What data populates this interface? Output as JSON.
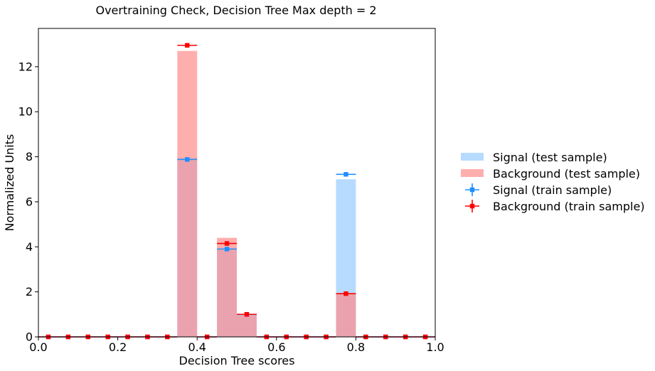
{
  "chart_data": {
    "type": "bar",
    "title": "Overtraining Check, Decision Tree Max depth = 2",
    "xlabel": "Decision Tree scores",
    "ylabel": "Normalized Units",
    "xlim": [
      0.0,
      1.0
    ],
    "ylim": [
      0,
      13.7
    ],
    "xticks": [
      "0.0",
      "0.2",
      "0.4",
      "0.6",
      "0.8",
      "1.0"
    ],
    "yticks": [
      "0",
      "2",
      "4",
      "6",
      "8",
      "10",
      "12"
    ],
    "grid": false,
    "legend_position": "outside-right",
    "bin_edges": [
      0.0,
      0.05,
      0.1,
      0.15,
      0.2,
      0.25,
      0.3,
      0.35,
      0.4,
      0.45,
      0.5,
      0.55,
      0.6,
      0.65,
      0.7,
      0.75,
      0.8,
      0.85,
      0.9,
      0.95,
      1.0
    ],
    "series": [
      {
        "name": "Signal (test sample)",
        "kind": "filled-histogram",
        "color": "#99ccff",
        "values": [
          0,
          0,
          0,
          0,
          0,
          0,
          0,
          7.95,
          0,
          3.85,
          1.0,
          0,
          0,
          0,
          0,
          7.0,
          0,
          0,
          0,
          0
        ]
      },
      {
        "name": "Background (test sample)",
        "kind": "filled-histogram",
        "color": "#ff8c8c",
        "values": [
          0,
          0,
          0,
          0,
          0,
          0,
          0,
          12.7,
          0,
          4.4,
          0.95,
          0,
          0,
          0,
          0,
          1.9,
          0,
          0,
          0,
          0
        ]
      },
      {
        "name": "Signal (train sample)",
        "kind": "errorbar-points",
        "color": "#1f8fff",
        "values": [
          0,
          0,
          0,
          0,
          0,
          0,
          0,
          7.88,
          0,
          3.9,
          1.0,
          0,
          0,
          0,
          0,
          7.22,
          0,
          0,
          0,
          0
        ]
      },
      {
        "name": "Background (train sample)",
        "kind": "errorbar-points",
        "color": "#ff0000",
        "values": [
          0,
          0,
          0,
          0,
          0,
          0,
          0,
          12.95,
          0,
          4.15,
          1.0,
          0,
          0,
          0,
          0,
          1.92,
          0,
          0,
          0,
          0
        ]
      }
    ]
  }
}
